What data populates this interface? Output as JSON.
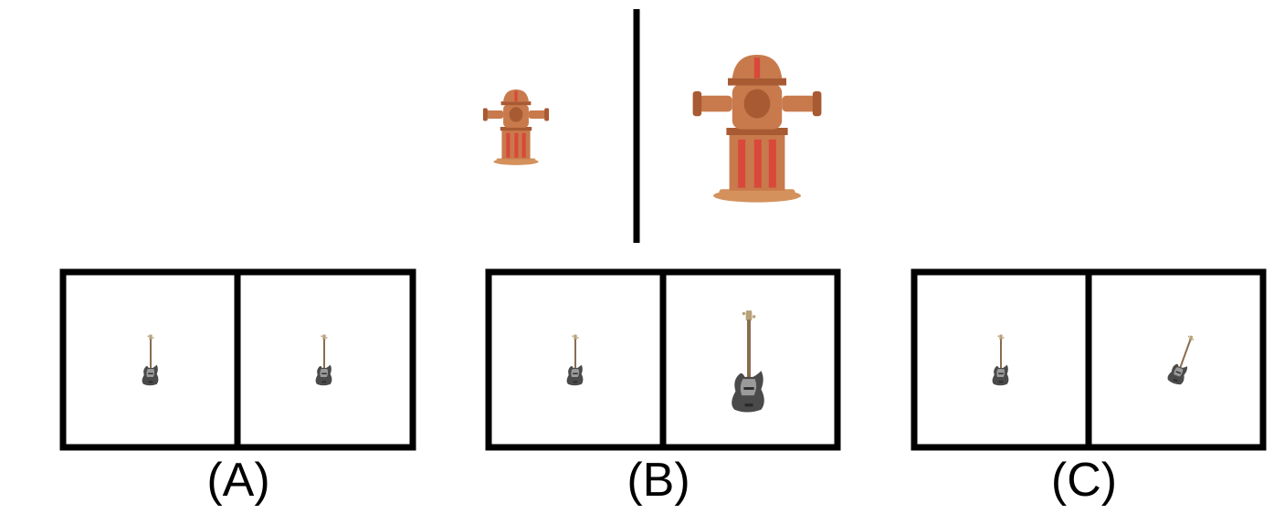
{
  "example": {
    "left": {
      "object": "fire-hydrant",
      "scale": "small"
    },
    "right": {
      "object": "fire-hydrant",
      "scale": "large"
    }
  },
  "options": [
    {
      "label": "(A)",
      "left": {
        "object": "bass-guitar",
        "scale": "small",
        "orientation": "upright"
      },
      "right": {
        "object": "bass-guitar",
        "scale": "small",
        "orientation": "upright"
      }
    },
    {
      "label": "(B)",
      "left": {
        "object": "bass-guitar",
        "scale": "small",
        "orientation": "upright"
      },
      "right": {
        "object": "bass-guitar",
        "scale": "large",
        "orientation": "upright"
      }
    },
    {
      "label": "(C)",
      "left": {
        "object": "bass-guitar",
        "scale": "small",
        "orientation": "upright"
      },
      "right": {
        "object": "bass-guitar",
        "scale": "medium",
        "orientation": "tilted"
      }
    }
  ],
  "colors": {
    "frame": "#000000",
    "hydrant_body": "#c87a4c",
    "hydrant_shade": "#a85a32",
    "hydrant_stripe": "#d9483a",
    "hydrant_base": "#d4915c",
    "guitar_body": "#4a4a4a",
    "guitar_pickguard": "#9a9a9a",
    "guitar_neck": "#8a6d4e",
    "guitar_head": "#b8a27a"
  }
}
